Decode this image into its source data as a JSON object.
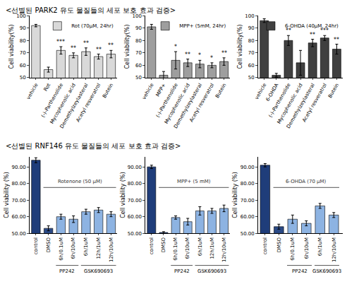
{
  "headings": [
    "<선별된 PARK2 유도 물질들의 세포 보호 효과 검증>",
    "<선별된 RNF146 유도 물질들의 세포 보호 효과 검증>"
  ],
  "chart_data": [
    {
      "type": "bar",
      "y_label": "Cell viability(%)",
      "legend": "top right",
      "categories": [
        "vehicle",
        "Rot",
        "(-)-Parthenolide",
        "Mycophenolic acid",
        "Demethylzeylasteral",
        "Acetyl resveratrol",
        "Butein"
      ],
      "series": [
        {
          "name": "Rot (70μM, 24hr)",
          "color": "#d9d9d9",
          "values": [
            92,
            56.5,
            72,
            68,
            71,
            67,
            69
          ],
          "errors": [
            1,
            2,
            3,
            2,
            3,
            2,
            3
          ]
        }
      ],
      "significance": [
        null,
        null,
        "***",
        "**",
        "**",
        "**",
        "**"
      ],
      "ylim": [
        50,
        100
      ],
      "yticks": [
        50,
        60,
        70,
        80,
        90,
        100
      ]
    },
    {
      "type": "bar",
      "y_label": "Cell viability(%)",
      "legend": "top right",
      "categories": [
        "vehicle",
        "MPP+",
        "(-)-Parthenolide",
        "Mycophenolic acid",
        "Demethylzeylasteral",
        "Acetyl resveratrol",
        "Butein"
      ],
      "series": [
        {
          "name": "MPP+ (5mM, 24hr)",
          "color": "#9e9e9e",
          "values": [
            91,
            52,
            64,
            62,
            61,
            60,
            63
          ],
          "errors": [
            2,
            3,
            7,
            3,
            3,
            2,
            3
          ]
        }
      ],
      "significance": [
        null,
        null,
        "*",
        "**",
        "*",
        "*",
        "**"
      ],
      "ylim": [
        50,
        100
      ],
      "yticks": [
        50,
        60,
        70,
        80,
        90,
        100
      ]
    },
    {
      "type": "bar",
      "y_label": "Cell viability(%)",
      "legend": "top right",
      "categories": [
        "vehicle",
        "6-OHDA",
        "(-)-Parthenolide",
        "Mycophenolic acid",
        "Demethylzeylasteral",
        "Acetyl resveratrol",
        "Butein"
      ],
      "series": [
        {
          "name": "6-OHDA (40μM, 24hr)",
          "color": "#404040",
          "values": [
            96,
            52,
            80,
            62,
            78,
            82,
            73
          ],
          "errors": [
            1.5,
            1.5,
            4,
            10,
            3,
            2,
            4
          ]
        }
      ],
      "significance": [
        null,
        null,
        "**",
        null,
        "**",
        "***",
        "**"
      ],
      "ylim": [
        50,
        100
      ],
      "yticks": [
        50,
        60,
        70,
        80,
        90,
        100
      ]
    },
    {
      "type": "bar",
      "y_label": "Cell viability (%)",
      "categories": [
        "control",
        "DMSO",
        "6h/0.1uM",
        "6h/10uM",
        "6h/1uM",
        "12h/1uM",
        "12h/10uM"
      ],
      "values": [
        94,
        53,
        60,
        58.5,
        63,
        64,
        61.5
      ],
      "errors": [
        1.5,
        1.5,
        1.5,
        2,
        1.5,
        1.5,
        1.5
      ],
      "colors": [
        "#1f3d7a",
        "#2b4a86",
        "#8db3e2",
        "#8db3e2",
        "#8db3e2",
        "#8db3e2",
        "#8db3e2"
      ],
      "bracket": {
        "label": "Rotenone (50 μM)",
        "from": "DMSO",
        "to": "12h/10uM"
      },
      "groups": [
        {
          "label": "PP242",
          "categories": [
            "6h/0.1uM",
            "6h/10uM"
          ]
        },
        {
          "label": "GSK690693",
          "categories": [
            "6h/1uM",
            "12h/1uM",
            "12h/10uM"
          ]
        }
      ],
      "ylim": [
        50,
        96
      ],
      "yticks": [
        {
          "value": 50,
          "label": "50.00"
        },
        {
          "value": 60,
          "label": "60.00"
        },
        {
          "value": 70,
          "label": "70.00"
        },
        {
          "value": 80,
          "label": "80.00"
        },
        {
          "value": 90,
          "label": "90.00"
        }
      ]
    },
    {
      "type": "bar",
      "y_label": "Cell viability (%)",
      "categories": [
        "control",
        "DMSO",
        "6h/0.1uM",
        "6h/10uM",
        "6h/1uM",
        "12h/1uM",
        "12h/10uM"
      ],
      "values": [
        90,
        50.5,
        59.5,
        57,
        63.5,
        63.5,
        65
      ],
      "errors": [
        1,
        0.5,
        1,
        2,
        2.5,
        1.5,
        2
      ],
      "colors": [
        "#1f3d7a",
        "#2b4a86",
        "#8db3e2",
        "#8db3e2",
        "#8db3e2",
        "#8db3e2",
        "#8db3e2"
      ],
      "bracket": {
        "label": "MPP+ (5 mM)",
        "from": "DMSO",
        "to": "12h/10uM"
      },
      "groups": [
        {
          "label": "PP242",
          "categories": [
            "6h/0.1uM",
            "6h/10uM"
          ]
        },
        {
          "label": "GSK690693",
          "categories": [
            "6h/1uM",
            "12h/1uM",
            "12h/10uM"
          ]
        }
      ],
      "ylim": [
        50,
        96
      ],
      "yticks": [
        {
          "value": 50,
          "label": "50.00"
        },
        {
          "value": 60,
          "label": "60.00"
        },
        {
          "value": 70,
          "label": "70.00"
        },
        {
          "value": 80,
          "label": "80.00"
        },
        {
          "value": 90,
          "label": "90.00"
        }
      ]
    },
    {
      "type": "bar",
      "y_label": "Cell viability (%)",
      "categories": [
        "control",
        "DMSO",
        "6h/0.1uM",
        "6h/10uM",
        "6h/1uM",
        "12h/10uM"
      ],
      "values": [
        91,
        54,
        58.5,
        56,
        66.5,
        61
      ],
      "errors": [
        1,
        1.5,
        2.5,
        1.5,
        1.5,
        1.5
      ],
      "colors": [
        "#1f3d7a",
        "#2b4a86",
        "#8db3e2",
        "#8db3e2",
        "#8db3e2",
        "#8db3e2"
      ],
      "bracket": {
        "label": "6-OHDA (70 μM)",
        "from": "DMSO",
        "to": "12h/10uM"
      },
      "groups": [
        {
          "label": "PP242",
          "categories": [
            "6h/0.1uM",
            "6h/10uM"
          ]
        },
        {
          "label": "GSK690693",
          "categories": [
            "6h/1uM",
            "12h/10uM"
          ]
        }
      ],
      "ylim": [
        50,
        96
      ],
      "yticks": [
        {
          "value": 50,
          "label": "50.00"
        },
        {
          "value": 60,
          "label": "60.00"
        },
        {
          "value": 70,
          "label": "70.00"
        },
        {
          "value": 80,
          "label": "80.00"
        },
        {
          "value": 90,
          "label": "90.00"
        }
      ]
    }
  ]
}
